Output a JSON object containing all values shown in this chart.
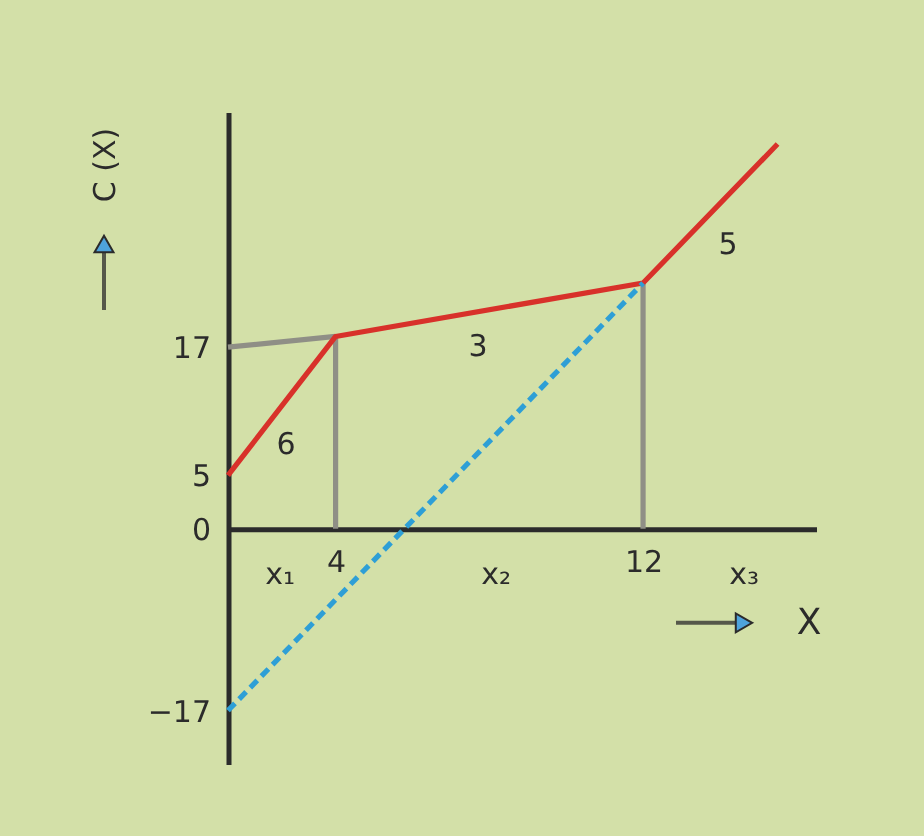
{
  "chart_data": {
    "type": "line",
    "xlabel": "X",
    "ylabel": "C (X)",
    "xlim": [
      1.2,
      16.5
    ],
    "ylim": [
      -22,
      39
    ],
    "xticks": [
      4,
      12
    ],
    "yticks": [
      -17,
      0,
      5,
      17
    ],
    "marker": "none",
    "series": [
      {
        "color": "#8f8f86",
        "x": [
          1.2,
          4
        ],
        "values": [
          17,
          18
        ]
      },
      {
        "color": "#8f8f86",
        "x": [
          4,
          4
        ],
        "values": [
          0,
          18
        ]
      },
      {
        "color": "#8f8f86",
        "x": [
          12,
          12
        ],
        "values": [
          0,
          23
        ]
      },
      {
        "color": "#d8312a",
        "x": [
          1.2,
          4,
          12,
          15.5
        ],
        "values": [
          5,
          18,
          23,
          36
        ]
      },
      {
        "color": "#2e9fd6",
        "x": [
          1.2,
          12
        ],
        "values": [
          -17,
          23
        ],
        "line_style": "dashed"
      }
    ],
    "annotations": [
      "6",
      "3",
      "5",
      "x₁",
      "x₂",
      "x₃"
    ]
  }
}
